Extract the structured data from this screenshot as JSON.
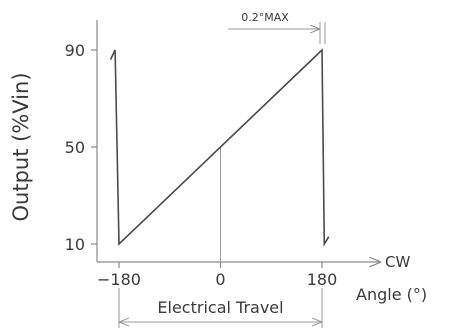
{
  "chart_data": {
    "type": "line",
    "ylabel": "Output (%Vin)",
    "xlabel": "Angle (°)",
    "x_direction_label": "CW",
    "x_ticks": [
      "−180",
      "0",
      "180"
    ],
    "y_ticks": [
      "10",
      "50",
      "90"
    ],
    "xlim": [
      -200,
      210
    ],
    "ylim": [
      0,
      110
    ],
    "series": [
      {
        "points": [
          [
            -195,
            86
          ],
          [
            -187,
            90
          ],
          [
            -180,
            10
          ],
          [
            180,
            90
          ],
          [
            184,
            10
          ],
          [
            192,
            13
          ]
        ]
      }
    ],
    "annotations": {
      "max_label": "0.2°MAX",
      "travel_label": "Electrical Travel"
    },
    "colors": {
      "curve": "#4a4a4a",
      "axis": "#8a8a8a"
    }
  }
}
